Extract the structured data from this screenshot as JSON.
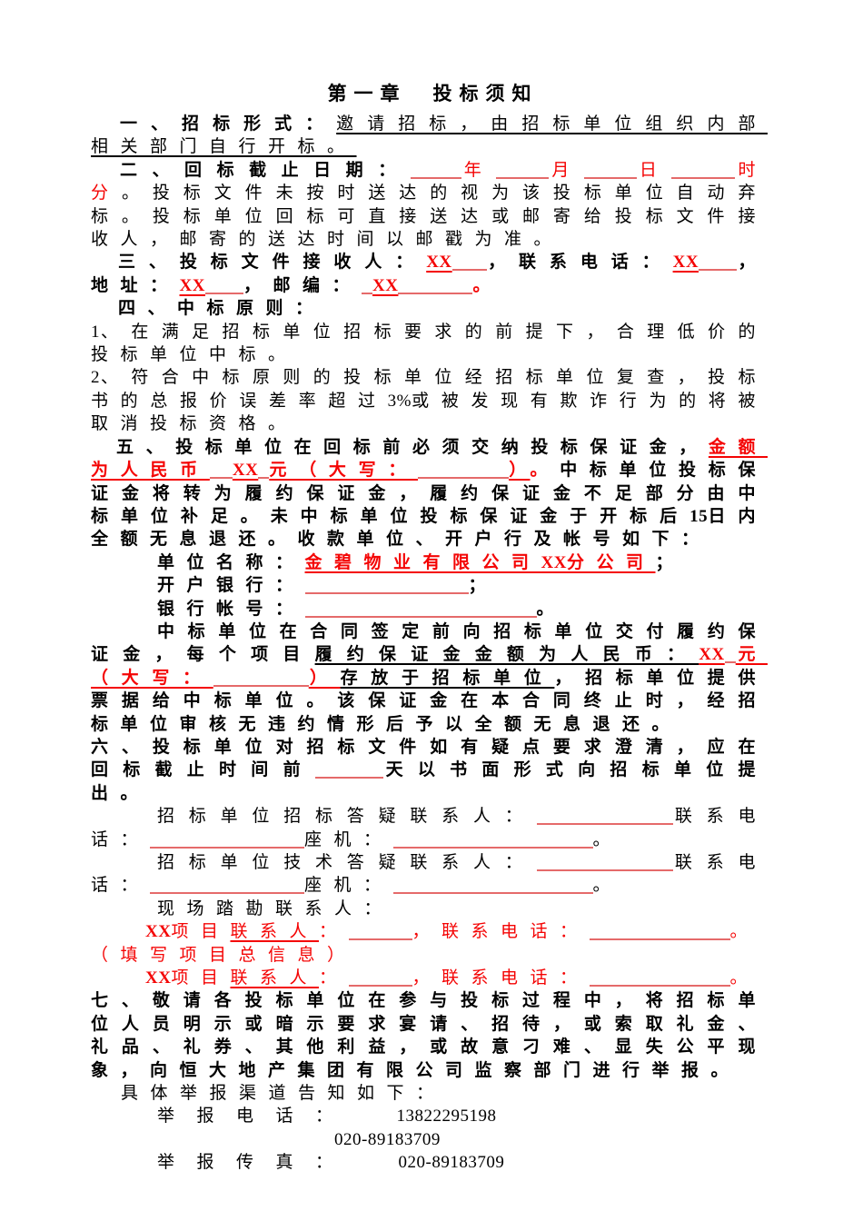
{
  "title": "第一章　投标须知",
  "colors": {
    "ink": "#000000",
    "red_text": "#f40404",
    "blank_line": "#e56a6a",
    "page_bg": "#ffffff"
  },
  "paragraphs": [
    {
      "name": "section-1-bid-form",
      "indent": 32,
      "segments": [
        {
          "t": "一、招标形式：",
          "b": 1
        },
        {
          "t": "邀请招标，由招标单位组织内部相关部门自行开标。",
          "u": 1
        }
      ]
    },
    {
      "name": "section-2-return-deadline",
      "indent": 32,
      "segments": [
        {
          "t": "二、回标截止日期：",
          "b": 1
        },
        {
          "blank": 56
        },
        {
          "t": "年",
          "r": 1
        },
        {
          "blank": 58
        },
        {
          "t": "月",
          "r": 1
        },
        {
          "blank": 58
        },
        {
          "t": "日",
          "r": 1
        },
        {
          "blank": 70
        },
        {
          "t": "时分",
          "r": 1
        },
        {
          "t": "。投标文件未按时送达的视为该投标单位自动弃标。投标单位回标可直接送达或邮寄给投标文件接收人，邮寄的送达时间以邮戳为准。"
        }
      ]
    },
    {
      "name": "section-3-document-receiver",
      "indent": 30,
      "segments": [
        {
          "t": "三、投标文件接收人：",
          "b": 1
        },
        {
          "t": "XX",
          "r": 1,
          "b": 1,
          "u": 1,
          "lat": 1
        },
        {
          "blank": 38
        },
        {
          "t": "，联系电话：",
          "b": 1
        },
        {
          "t": "XX",
          "r": 1,
          "b": 1,
          "u": 1,
          "lat": 1
        },
        {
          "blank": 42
        },
        {
          "t": "，地址：",
          "b": 1
        },
        {
          "t": "XX",
          "r": 1,
          "b": 1,
          "u": 1,
          "lat": 1
        },
        {
          "blank": 42
        },
        {
          "t": "，邮编：",
          "b": 1
        },
        {
          "blank": 12
        },
        {
          "t": "XX",
          "r": 1,
          "b": 1,
          "u": 1,
          "lat": 1
        },
        {
          "blank": 82
        },
        {
          "t": "。",
          "r": 1,
          "b": 1
        }
      ]
    },
    {
      "name": "section-4-award-principles",
      "indent": 30,
      "segments": [
        {
          "t": "四、中标原则：",
          "b": 1
        }
      ]
    },
    {
      "name": "award-principle-item-1",
      "indent": 0,
      "segments": [
        {
          "t": "1",
          "lat": 1
        },
        {
          "t": "、在满足招标单位招标要求的前提下，合理低价的投标单位中标。"
        }
      ]
    },
    {
      "name": "award-principle-item-2",
      "indent": 0,
      "segments": [
        {
          "t": "2",
          "lat": 1
        },
        {
          "t": "、符合中标原则的投标单位经招标单位复查，投标书的总报价误差率超过"
        },
        {
          "t": "3%",
          "lat": 1
        },
        {
          "t": "或被发现有欺诈行为的将被取消投标资格。"
        }
      ]
    },
    {
      "name": "section-5-bid-bond",
      "indent": 28,
      "segments": [
        {
          "t": "五、投标单位在回标前必须交纳投标保证金，",
          "b": 1
        },
        {
          "t": "金额为人民币",
          "r": 1,
          "b": 1,
          "u": 1
        },
        {
          "blank": 25
        },
        {
          "t": "XX",
          "r": 1,
          "b": 1,
          "u": 1,
          "lat": 1
        },
        {
          "blank": 12
        },
        {
          "t": "元（大写：",
          "r": 1,
          "b": 1,
          "u": 1
        },
        {
          "blank": 100
        },
        {
          "t": "）",
          "r": 1,
          "b": 1,
          "u": 1
        },
        {
          "t": "。",
          "r": 1,
          "b": 1
        },
        {
          "t": "中标单位投标保证金将转为履约保证金，履约保证金不足部分由中标单位补足。未中标单位投标保证金于开标后",
          "b": 1
        },
        {
          "t": "15",
          "b": 1,
          "lat": 1
        },
        {
          "t": "日内全额无息退还。收款单位、开户行及帐号如下：",
          "b": 1
        }
      ]
    },
    {
      "name": "payee-company-name",
      "indent": 73,
      "segments": [
        {
          "t": "单位名称：",
          "b": 1
        },
        {
          "t": "金碧物业有限公司",
          "r": 1,
          "b": 1,
          "u": 1
        },
        {
          "t": "XX",
          "r": 1,
          "b": 1,
          "u": 1,
          "lat": 1
        },
        {
          "t": "分公司",
          "r": 1,
          "b": 1,
          "u": 1
        },
        {
          "t": "；",
          "b": 1
        }
      ]
    },
    {
      "name": "payee-bank-name",
      "indent": 73,
      "segments": [
        {
          "t": "开户银行：",
          "b": 1
        },
        {
          "blank": 180
        },
        {
          "t": "；",
          "b": 1
        }
      ]
    },
    {
      "name": "payee-bank-account",
      "indent": 73,
      "segments": [
        {
          "t": "银行帐号：",
          "b": 1
        },
        {
          "blank": 255
        },
        {
          "t": "。",
          "b": 1
        }
      ]
    },
    {
      "name": "performance-bond-clause",
      "indent": 73,
      "segments": [
        {
          "t": "中标单位在合同签定前向招标单位交付履约保证金，每个项目",
          "b": 1
        },
        {
          "t": "履约保证金金额为人民币：",
          "b": 1,
          "u": 1
        },
        {
          "t": "XX",
          "r": 1,
          "b": 1,
          "u": 1,
          "lat": 1
        },
        {
          "blank": 12
        },
        {
          "t": "元（大写：",
          "r": 1,
          "b": 1,
          "u": 1
        },
        {
          "blank": 105
        },
        {
          "t": "）",
          "r": 1,
          "b": 1,
          "u": 1
        },
        {
          "t": "存放于招标单位",
          "b": 1,
          "u": 1
        },
        {
          "t": "，招标单位提供票据给中标单位。该保证金在本合同终止时，经招标单位审核无违约情形后予以全额无息退还。",
          "b": 1
        }
      ]
    },
    {
      "name": "section-6-clarification",
      "indent": 0,
      "segments": [
        {
          "t": "六、投标单位对招标文件如有疑点要求澄清，应在回标截止时间前",
          "b": 1
        },
        {
          "blank": 75
        },
        {
          "t": "天以书面形式向招标单位提出。",
          "b": 1
        }
      ]
    },
    {
      "name": "contact-bid-answer",
      "indent": 73,
      "segments": [
        {
          "t": "招标单位招标答疑联系人："
        },
        {
          "blank": 150
        },
        {
          "t": "联系电话："
        },
        {
          "blank": 170
        },
        {
          "t": "座机："
        },
        {
          "blank": 220
        },
        {
          "t": "。"
        }
      ]
    },
    {
      "name": "contact-tech-answer",
      "indent": 73,
      "segments": [
        {
          "t": "招标单位技术答疑联系人："
        },
        {
          "blank": 150
        },
        {
          "t": "联系电话："
        },
        {
          "blank": 170
        },
        {
          "t": "座机："
        },
        {
          "blank": 220
        },
        {
          "t": "。"
        }
      ]
    },
    {
      "name": "site-visit-contact",
      "indent": 73,
      "segments": [
        {
          "t": "现场踏勘联系人："
        }
      ]
    },
    {
      "name": "project-contact-1",
      "indent": 60,
      "segments": [
        {
          "t": "XX",
          "r": 1,
          "b": 1,
          "lat": 1
        },
        {
          "t": "项目",
          "r": 1
        },
        {
          "t": "联系人",
          "r": 1,
          "u": 1
        },
        {
          "t": "：",
          "r": 1
        },
        {
          "blank": 70
        },
        {
          "t": "，联系电话：",
          "r": 1
        },
        {
          "blank": 155
        },
        {
          "t": "。",
          "r": 1
        }
      ]
    },
    {
      "name": "project-contact-note",
      "indent": 0,
      "segments": [
        {
          "t": "（填写项目总信息）",
          "r": 1
        }
      ]
    },
    {
      "name": "project-contact-2",
      "indent": 60,
      "segments": [
        {
          "t": "XX",
          "r": 1,
          "b": 1,
          "lat": 1
        },
        {
          "t": "项目",
          "r": 1
        },
        {
          "t": "联系人",
          "r": 1,
          "u": 1
        },
        {
          "t": "：",
          "r": 1
        },
        {
          "blank": 70
        },
        {
          "t": "，联系电话：",
          "r": 1
        },
        {
          "blank": 155
        },
        {
          "t": "。",
          "r": 1
        }
      ]
    },
    {
      "name": "section-7-whistleblowing",
      "indent": 0,
      "segments": [
        {
          "t": "七、敬请各投标单位在参与投标过程中，将招标单位人员明示或暗示要求宴请、招待，或索取礼金、礼品、礼券、其他利益，或故意刁难、显失公平现象，向恒大地产集团有限公司监察部门进行举报。",
          "b": 1
        }
      ]
    },
    {
      "name": "report-channels-intro",
      "indent": 33,
      "segments": [
        {
          "t": "具体举报渠道告知如下："
        }
      ]
    },
    {
      "name": "report-phone-line",
      "indent": 73,
      "segments": [
        {
          "t": "举报电话：",
          "wide": 1
        },
        {
          "gap": 46
        },
        {
          "t": "13822295198",
          "lat": 1
        }
      ]
    },
    {
      "name": "report-phone-line-2",
      "indent": 268,
      "segments": [
        {
          "t": "020-89183709",
          "lat": 1
        }
      ]
    },
    {
      "name": "report-fax-line",
      "indent": 73,
      "segments": [
        {
          "t": "举报传真：",
          "wide": 1
        },
        {
          "gap": 48
        },
        {
          "t": "020-89183709",
          "lat": 1
        }
      ]
    }
  ]
}
